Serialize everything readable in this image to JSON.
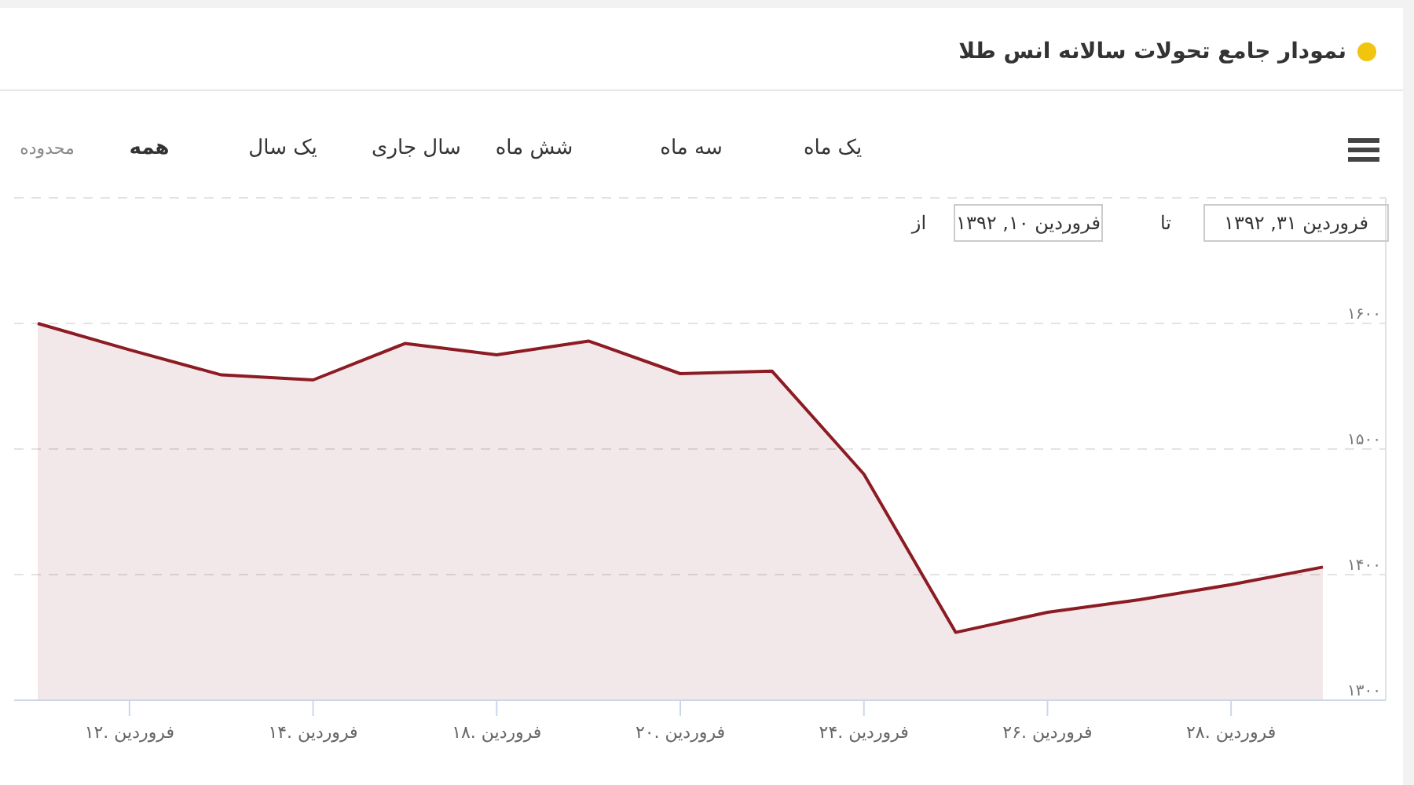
{
  "chart_data": {
    "type": "area",
    "title": "نمودار جامع تحولات سالانه انس طلا",
    "categories": [
      null,
      "۱۲. فروردین",
      null,
      "۱۴. فروردین",
      null,
      "۱۸. فروردین",
      null,
      "۲۰. فروردین",
      null,
      "۲۴. فروردین",
      null,
      "۲۶. فروردین",
      null,
      "۲۸. فروردین",
      null
    ],
    "values": [
      1600,
      1579,
      1559,
      1555,
      1584,
      1575,
      1586,
      1560,
      1562,
      1480,
      1354,
      1370,
      1380,
      1392,
      1406
    ],
    "color": "#8c1c24",
    "line_style": "solid",
    "ylim": [
      1300,
      1700
    ],
    "yticks": [
      {
        "value": 1300,
        "label": "۱۳۰۰"
      },
      {
        "value": 1400,
        "label": "۱۴۰۰"
      },
      {
        "value": 1500,
        "label": "۱۵۰۰"
      },
      {
        "value": 1600,
        "label": "۱۶۰۰"
      },
      {
        "value": 1700,
        "label": null
      }
    ],
    "grid": "y",
    "annotations": [
      "محدوده",
      "همه",
      "یک سال",
      "سال جاری",
      "شش ماه",
      "سه ماه",
      "یک ماه",
      "از",
      "فروردین ۱۰, ۱۳۹۲",
      "تا",
      "فروردین ۳۱, ۱۳۹۲"
    ]
  }
}
